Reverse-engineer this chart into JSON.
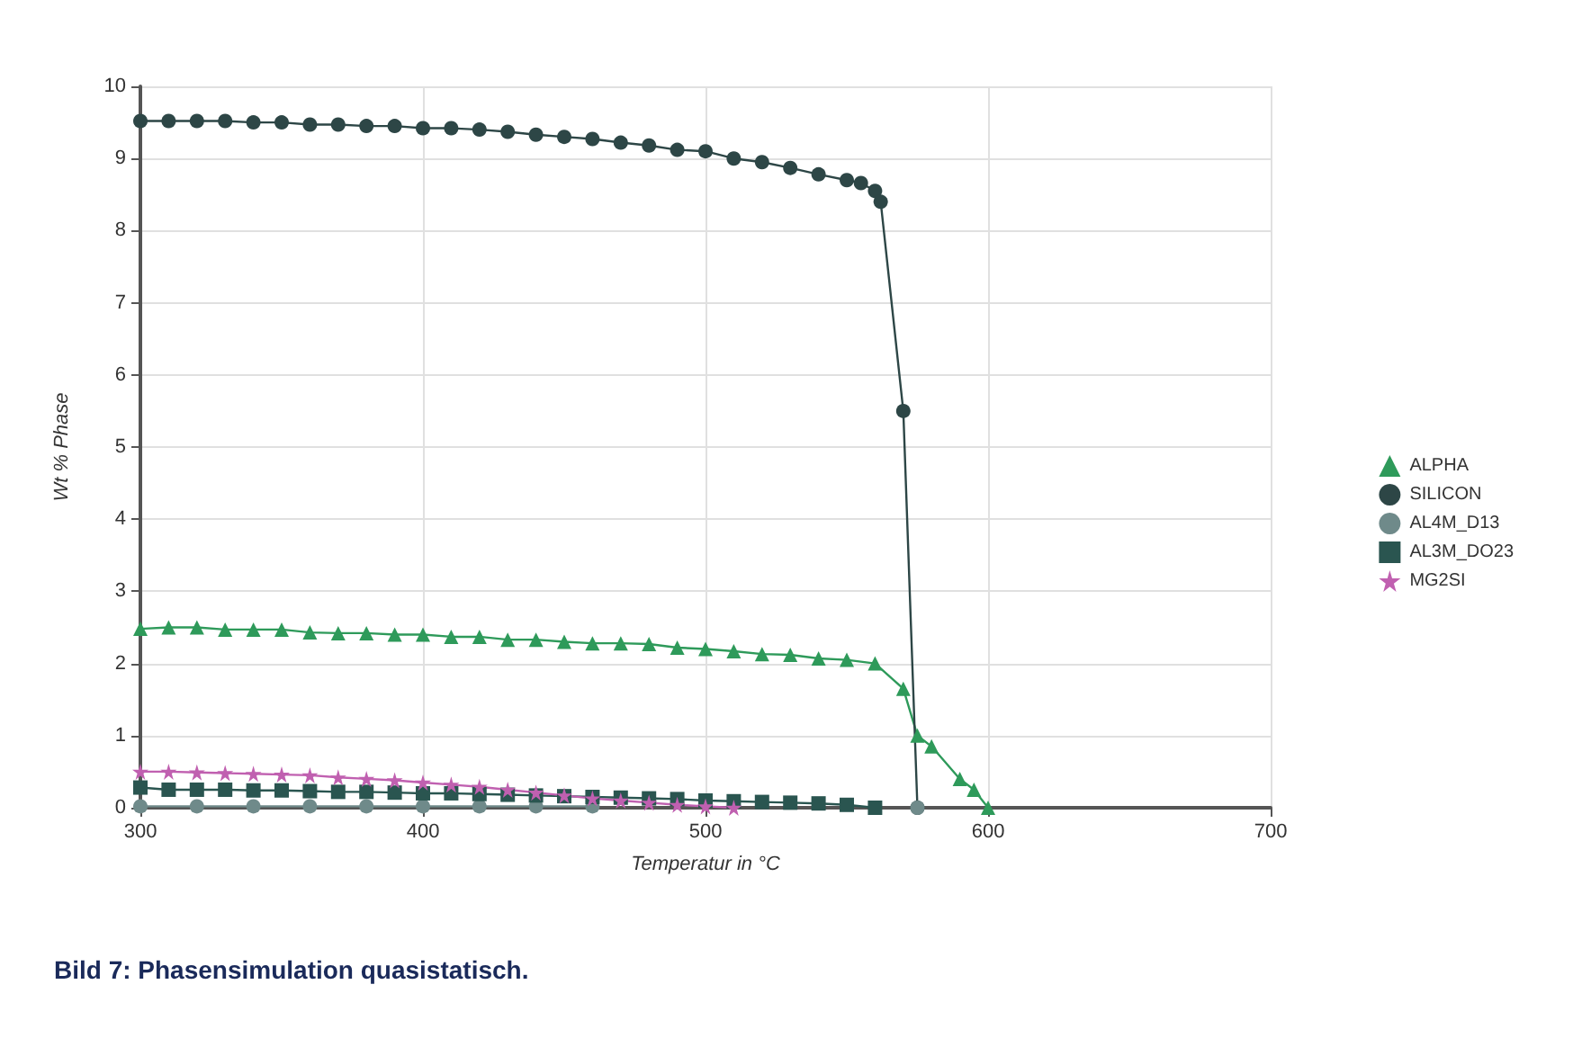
{
  "chart_data": {
    "type": "line",
    "xlabel": "Temperatur in °C",
    "ylabel": "Wt % Phase",
    "xlim": [
      300,
      700
    ],
    "xticks": [
      300,
      400,
      500,
      600,
      700
    ],
    "ylim": [
      0,
      10
    ],
    "yticks": [
      0,
      1,
      2,
      3,
      4,
      5,
      6,
      7,
      8,
      9,
      10
    ],
    "grid": true,
    "legend": "right",
    "annotations": [
      "Bild 7: Phasensimulation quasistatisch."
    ],
    "series": [
      {
        "name": "ALPHA",
        "color": "#2e9a5a",
        "marker": "triangle",
        "x": [
          300,
          310,
          320,
          330,
          340,
          350,
          360,
          370,
          380,
          390,
          400,
          410,
          420,
          430,
          440,
          450,
          460,
          470,
          480,
          490,
          500,
          510,
          520,
          530,
          540,
          550,
          560,
          570,
          575,
          580,
          590,
          595,
          600
        ],
        "values": [
          2.48,
          2.5,
          2.5,
          2.47,
          2.47,
          2.47,
          2.43,
          2.42,
          2.42,
          2.4,
          2.4,
          2.37,
          2.37,
          2.33,
          2.33,
          2.3,
          2.28,
          2.28,
          2.27,
          2.22,
          2.2,
          2.17,
          2.13,
          2.12,
          2.07,
          2.05,
          2.0,
          1.65,
          1.0,
          0.85,
          0.4,
          0.25,
          0
        ]
      },
      {
        "name": "SILICON",
        "color": "#2d4646",
        "marker": "circle",
        "x": [
          300,
          310,
          320,
          330,
          340,
          350,
          360,
          370,
          380,
          390,
          400,
          410,
          420,
          430,
          440,
          450,
          460,
          470,
          480,
          490,
          500,
          510,
          520,
          530,
          540,
          550,
          555,
          560,
          562,
          570,
          575
        ],
        "values": [
          9.52,
          9.52,
          9.52,
          9.52,
          9.5,
          9.5,
          9.47,
          9.47,
          9.45,
          9.45,
          9.42,
          9.42,
          9.4,
          9.37,
          9.33,
          9.3,
          9.27,
          9.22,
          9.18,
          9.12,
          9.1,
          9.0,
          8.95,
          8.87,
          8.78,
          8.7,
          8.66,
          8.55,
          8.4,
          5.5,
          0
        ]
      },
      {
        "name": "AL4M_D13",
        "color": "#6f8a8a",
        "marker": "circle",
        "x": [
          300,
          320,
          340,
          360,
          380,
          400,
          420,
          440,
          460,
          480,
          500,
          520,
          540,
          560,
          575
        ],
        "values": [
          0.02,
          0.02,
          0.02,
          0.02,
          0.02,
          0.02,
          0.02,
          0.02,
          0.02,
          null,
          null,
          null,
          null,
          null,
          0
        ]
      },
      {
        "name": "AL3M_DO23",
        "color": "#2a5550",
        "marker": "square",
        "x": [
          300,
          310,
          320,
          330,
          340,
          350,
          360,
          370,
          380,
          390,
          400,
          410,
          420,
          430,
          440,
          450,
          460,
          470,
          480,
          490,
          500,
          510,
          520,
          530,
          540,
          550,
          560
        ],
        "values": [
          0.28,
          0.25,
          0.25,
          0.25,
          0.24,
          0.24,
          0.23,
          0.22,
          0.22,
          0.21,
          0.2,
          0.2,
          0.19,
          0.18,
          0.17,
          0.16,
          0.15,
          0.14,
          0.13,
          0.12,
          0.1,
          0.09,
          0.08,
          0.07,
          0.06,
          0.04,
          0
        ]
      },
      {
        "name": "MG2SI",
        "color": "#c060b0",
        "marker": "star",
        "x": [
          300,
          310,
          320,
          330,
          340,
          350,
          360,
          370,
          380,
          390,
          400,
          410,
          420,
          430,
          440,
          450,
          460,
          470,
          480,
          490,
          500,
          510
        ],
        "values": [
          0.5,
          0.5,
          0.49,
          0.48,
          0.47,
          0.46,
          0.45,
          0.42,
          0.4,
          0.38,
          0.35,
          0.32,
          0.29,
          0.25,
          0.21,
          0.17,
          0.13,
          0.1,
          0.07,
          0.04,
          0.02,
          0
        ]
      }
    ]
  }
}
